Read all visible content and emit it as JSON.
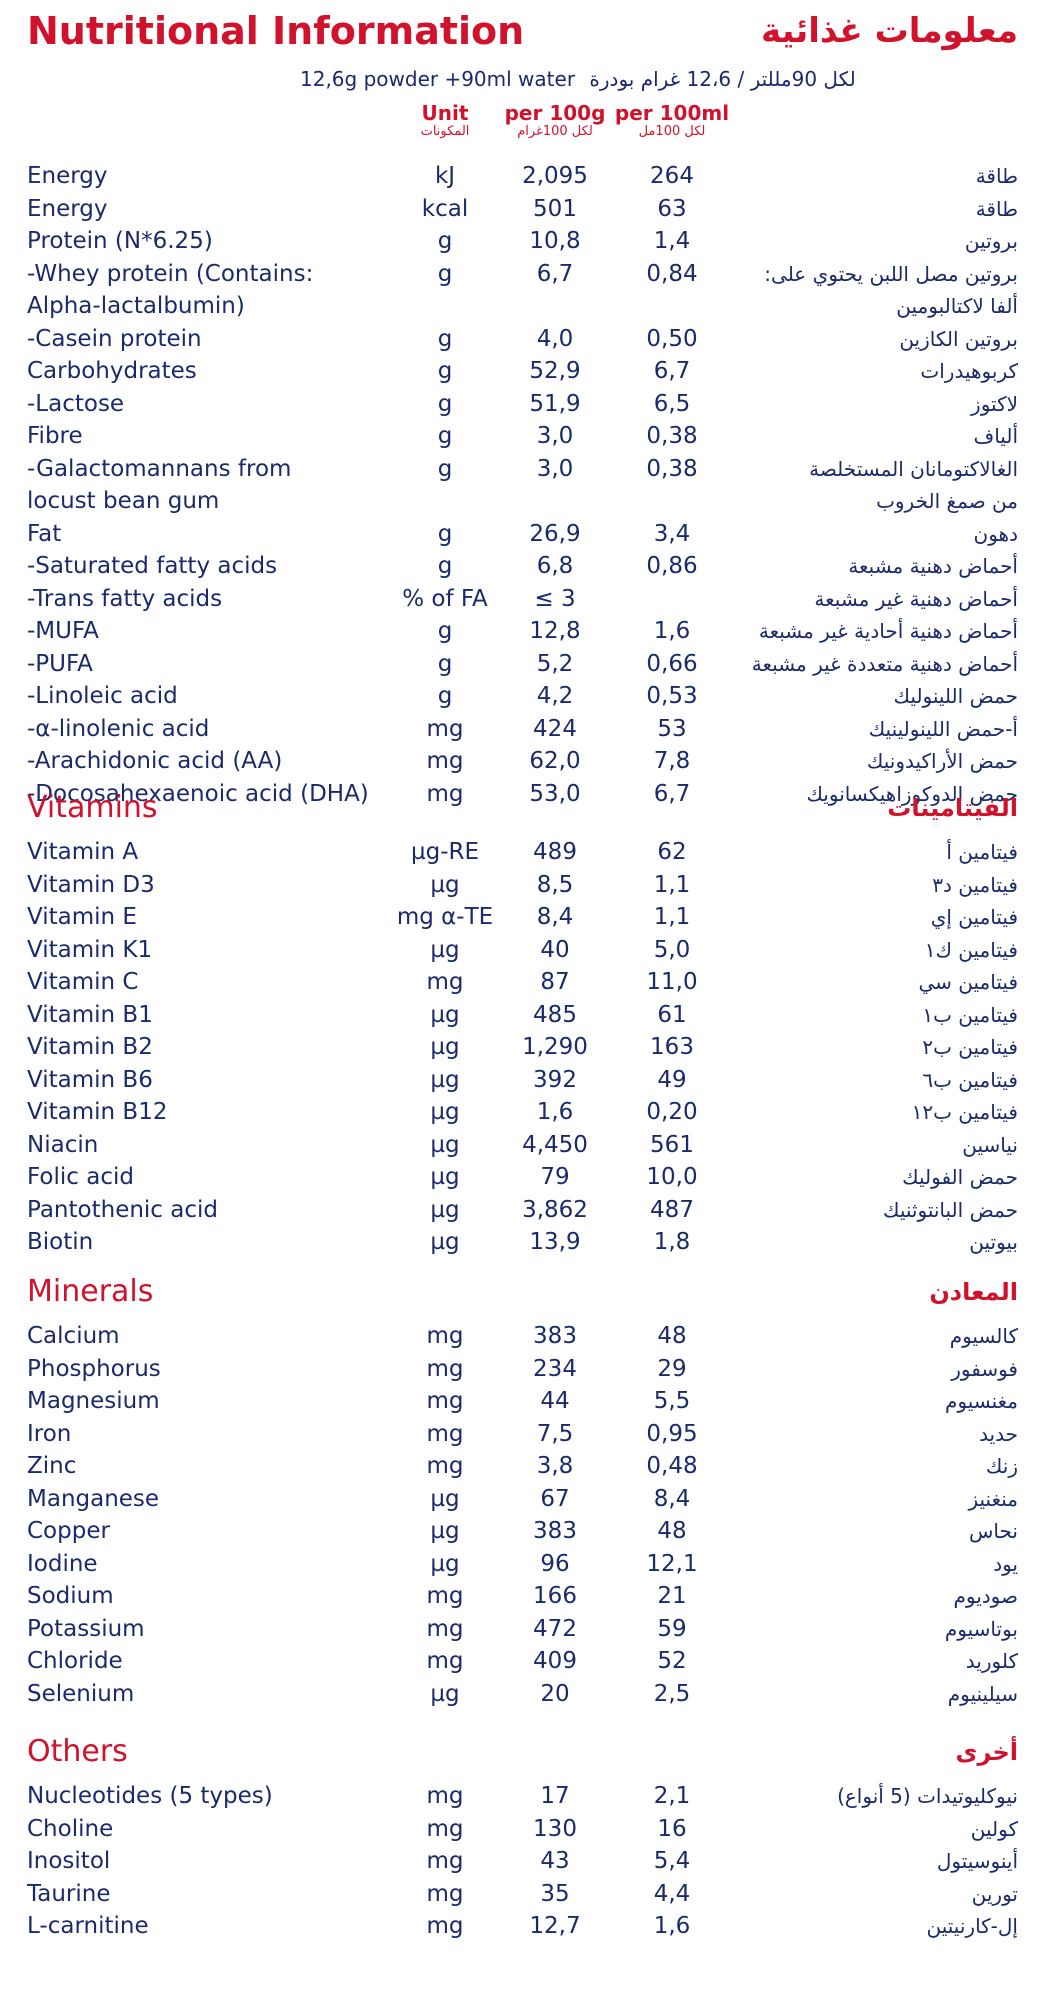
{
  "title_en": "Nutritional Information",
  "title_ar": "معلومات غذائية",
  "serving_en": "12,6g powder +90ml water",
  "serving_ar": "لكل 90مللتر / 12،6 غرام بودرة",
  "headers": {
    "unit_en": "Unit",
    "unit_ar": "المكونات",
    "per100g_en": "per 100g",
    "per100g_ar": "لكل 100غرام",
    "per100ml_en": "per 100ml",
    "per100ml_ar": "لكل 100مل"
  },
  "sections": [
    {
      "title_en": "",
      "title_ar": "",
      "top": 160,
      "rows": [
        {
          "en": "Energy",
          "unit": "kJ",
          "g": "2,095",
          "ml": "264",
          "ar": "طاقة"
        },
        {
          "en": "Energy",
          "unit": "kcal",
          "g": "501",
          "ml": "63",
          "ar": "طاقة"
        },
        {
          "en": "Protein (N*6.25)",
          "unit": "g",
          "g": "10,8",
          "ml": "1,4",
          "ar": "بروتين"
        },
        {
          "en": "-Whey protein (Contains:",
          "unit": "g",
          "g": "6,7",
          "ml": "0,84",
          "ar": "بروتين مصل اللبن يحتوي على:"
        },
        {
          "en": "Alpha-lactalbumin)",
          "unit": "",
          "g": "",
          "ml": "",
          "ar": "ألفا لاكتالبومين"
        },
        {
          "en": "-Casein protein",
          "unit": "g",
          "g": "4,0",
          "ml": "0,50",
          "ar": "بروتين الكازين"
        },
        {
          "en": "Carbohydrates",
          "unit": "g",
          "g": "52,9",
          "ml": "6,7",
          "ar": "كربوهيدرات"
        },
        {
          "en": "-Lactose",
          "unit": "g",
          "g": "51,9",
          "ml": "6,5",
          "ar": "لاكتوز"
        },
        {
          "en": "Fibre",
          "unit": "g",
          "g": "3,0",
          "ml": "0,38",
          "ar": "ألياف"
        },
        {
          "en": "-Galactomannans from",
          "unit": "g",
          "g": "3,0",
          "ml": "0,38",
          "ar": "الغالاكتومانان المستخلصة"
        },
        {
          "en": " locust bean gum",
          "unit": "",
          "g": "",
          "ml": "",
          "ar": "من صمغ الخروب"
        },
        {
          "en": "Fat",
          "unit": "g",
          "g": "26,9",
          "ml": "3,4",
          "ar": "دهون"
        },
        {
          "en": "-Saturated fatty acids",
          "unit": "g",
          "g": "6,8",
          "ml": "0,86",
          "ar": "أحماض دهنية مشبعة"
        },
        {
          "en": "-Trans fatty acids",
          "unit": "% of FA",
          "g": "≤ 3",
          "ml": "",
          "ar": "أحماض دهنية غير مشبعة"
        },
        {
          "en": "-MUFA",
          "unit": "g",
          "g": "12,8",
          "ml": "1,6",
          "ar": "أحماض دهنية أحادية غير مشبعة"
        },
        {
          "en": "-PUFA",
          "unit": "g",
          "g": "5,2",
          "ml": "0,66",
          "ar": "أحماض دهنية متعددة غير مشبعة"
        },
        {
          "en": "-Linoleic acid",
          "unit": "g",
          "g": "4,2",
          "ml": "0,53",
          "ar": "حمض اللينوليك"
        },
        {
          "en": "-α-linolenic acid",
          "unit": "mg",
          "g": "424",
          "ml": "53",
          "ar": "أ-حمض اللينولينيك"
        },
        {
          "en": "-Arachidonic acid (AA)",
          "unit": "mg",
          "g": "62,0",
          "ml": "7,8",
          "ar": "حمض الأراكيدونيك"
        },
        {
          "en": "-Docosahexaenoic acid (DHA)",
          "unit": "mg",
          "g": "53,0",
          "ml": "6,7",
          "ar": "حمض الدوكوزاهيكسانويك"
        }
      ]
    },
    {
      "title_en": "Vitamins",
      "title_ar": "الفيتامينات",
      "top": 836,
      "rows": [
        {
          "en": "Vitamin A",
          "unit": "µg-RE",
          "g": "489",
          "ml": "62",
          "ar": "فيتامين أ"
        },
        {
          "en": "Vitamin D3",
          "unit": "µg",
          "g": "8,5",
          "ml": "1,1",
          "ar": "فيتامين د٣"
        },
        {
          "en": "Vitamin E",
          "unit": "mg α-TE",
          "g": "8,4",
          "ml": "1,1",
          "ar": "فيتامين إي"
        },
        {
          "en": "Vitamin K1",
          "unit": "µg",
          "g": "40",
          "ml": "5,0",
          "ar": "فيتامين ك١"
        },
        {
          "en": "Vitamin C",
          "unit": "mg",
          "g": "87",
          "ml": "11,0",
          "ar": "فيتامين سي"
        },
        {
          "en": "Vitamin B1",
          "unit": "µg",
          "g": "485",
          "ml": "61",
          "ar": "فيتامين ب١"
        },
        {
          "en": "Vitamin B2",
          "unit": "µg",
          "g": "1,290",
          "ml": "163",
          "ar": "فيتامين ب٢"
        },
        {
          "en": "Vitamin B6",
          "unit": "µg",
          "g": "392",
          "ml": "49",
          "ar": "فيتامين ب٦"
        },
        {
          "en": "Vitamin B12",
          "unit": "µg",
          "g": "1,6",
          "ml": "0,20",
          "ar": "فيتامين ب١٢"
        },
        {
          "en": "Niacin",
          "unit": "µg",
          "g": "4,450",
          "ml": "561",
          "ar": "نياسين"
        },
        {
          "en": "Folic acid",
          "unit": "µg",
          "g": "79",
          "ml": "10,0",
          "ar": "حمض الفوليك"
        },
        {
          "en": "Pantothenic acid",
          "unit": "µg",
          "g": "3,862",
          "ml": "487",
          "ar": "حمض البانتوثنيك"
        },
        {
          "en": "Biotin",
          "unit": "µg",
          "g": "13,9",
          "ml": "1,8",
          "ar": "بيوتين"
        }
      ]
    },
    {
      "title_en": "Minerals",
      "title_ar": "المعادن",
      "top": 1320,
      "rows": [
        {
          "en": "Calcium",
          "unit": "mg",
          "g": "383",
          "ml": "48",
          "ar": "كالسيوم"
        },
        {
          "en": "Phosphorus",
          "unit": "mg",
          "g": "234",
          "ml": "29",
          "ar": "فوسفور"
        },
        {
          "en": "Magnesium",
          "unit": "mg",
          "g": "44",
          "ml": "5,5",
          "ar": "مغنسيوم"
        },
        {
          "en": "Iron",
          "unit": "mg",
          "g": "7,5",
          "ml": "0,95",
          "ar": "حديد"
        },
        {
          "en": "Zinc",
          "unit": "mg",
          "g": "3,8",
          "ml": "0,48",
          "ar": "زنك"
        },
        {
          "en": "Manganese",
          "unit": "µg",
          "g": "67",
          "ml": "8,4",
          "ar": "منغنيز"
        },
        {
          "en": "Copper",
          "unit": "µg",
          "g": "383",
          "ml": "48",
          "ar": "نحاس"
        },
        {
          "en": "Iodine",
          "unit": "µg",
          "g": "96",
          "ml": "12,1",
          "ar": "يود"
        },
        {
          "en": "Sodium",
          "unit": "mg",
          "g": "166",
          "ml": "21",
          "ar": "صوديوم"
        },
        {
          "en": "Potassium",
          "unit": "mg",
          "g": "472",
          "ml": "59",
          "ar": "بوتاسيوم"
        },
        {
          "en": "Chloride",
          "unit": "mg",
          "g": "409",
          "ml": "52",
          "ar": "كلوريد"
        },
        {
          "en": "Selenium",
          "unit": "µg",
          "g": "20",
          "ml": "2,5",
          "ar": "سيلينيوم"
        }
      ]
    },
    {
      "title_en": "Others",
      "title_ar": "أخرى",
      "top": 1780,
      "rows": [
        {
          "en": "Nucleotides (5 types)",
          "unit": "mg",
          "g": "17",
          "ml": "2,1",
          "ar": "نيوكليوتيدات (5 أنواع)"
        },
        {
          "en": "Choline",
          "unit": "mg",
          "g": "130",
          "ml": "16",
          "ar": "كولين"
        },
        {
          "en": "Inositol",
          "unit": "mg",
          "g": "43",
          "ml": "5,4",
          "ar": "أينوسيتول"
        },
        {
          "en": "Taurine",
          "unit": "mg",
          "g": "35",
          "ml": "4,4",
          "ar": "تورين"
        },
        {
          "en": "L-carnitine",
          "unit": "mg",
          "g": "12,7",
          "ml": "1,6",
          "ar": "إل-كارنيتين"
        }
      ]
    }
  ]
}
